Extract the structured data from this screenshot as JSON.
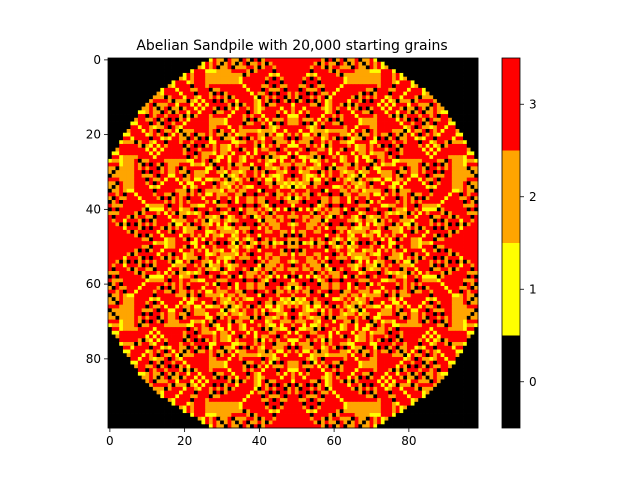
{
  "chart_data": {
    "type": "heatmap",
    "title": "Abelian Sandpile with 20,000 starting grains",
    "xlabel": "",
    "ylabel": "",
    "grid_size": 99,
    "xlim": [
      -0.5,
      98.5
    ],
    "ylim": [
      98.5,
      -0.5
    ],
    "x_ticks": [
      0,
      20,
      40,
      60,
      80
    ],
    "y_ticks": [
      0,
      20,
      40,
      60,
      80
    ],
    "starting_grains": 20000,
    "source_cell": [
      49,
      49
    ],
    "values_description": "99x99 grid of grains per cell (0-3) after toppling 20,000 grains placed at the center cell",
    "colorbar": {
      "levels": [
        0,
        1,
        2,
        3
      ],
      "tick_labels": [
        "0",
        "1",
        "2",
        "3"
      ],
      "colors": [
        "#000000",
        "#ffff00",
        "#ffa500",
        "#ff0000"
      ]
    },
    "grid": false,
    "legend": "colorbar-right"
  }
}
